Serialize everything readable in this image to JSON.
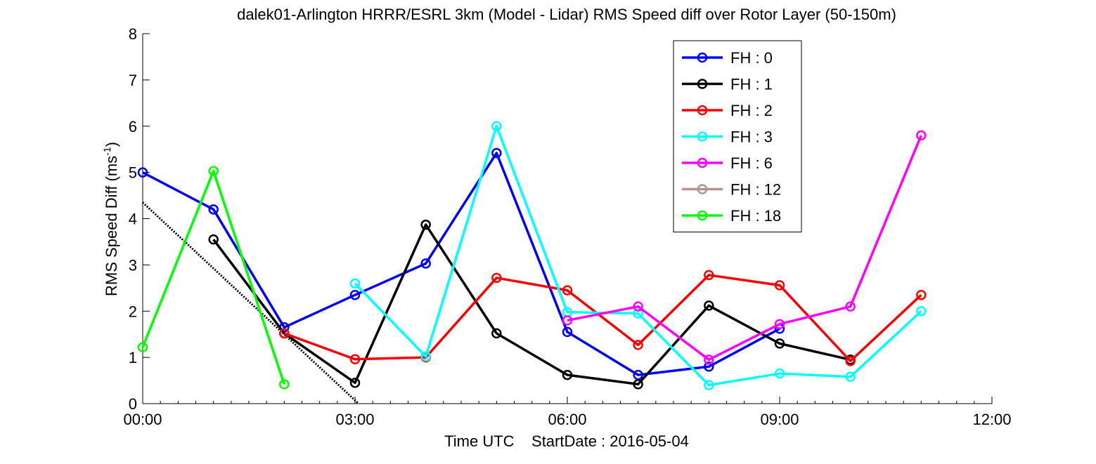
{
  "chart_data": {
    "type": "line",
    "title": "dalek01-Arlington HRRR/ESRL 3km (Model - Lidar) RMS Speed diff over Rotor Layer (50-150m)",
    "xlabel": "Time UTC    StartDate : 2016-05-04",
    "ylabel_main": "RMS Speed Diff (ms",
    "ylabel_sup": "-1",
    "ylabel_tail": ")",
    "xlim": [
      0,
      12
    ],
    "ylim": [
      0,
      8
    ],
    "x_ticks": [
      0,
      3,
      6,
      9,
      12
    ],
    "x_tick_labels": [
      "00:00",
      "03:00",
      "06:00",
      "09:00",
      "12:00"
    ],
    "y_ticks": [
      0,
      1,
      2,
      3,
      4,
      5,
      6,
      7,
      8
    ],
    "y_tick_labels": [
      "0",
      "1",
      "2",
      "3",
      "4",
      "5",
      "6",
      "7",
      "8"
    ],
    "grid": false,
    "legend_position": "top-right",
    "series": [
      {
        "name": "FH : 0",
        "color": "#0000ff",
        "points": [
          [
            0,
            5.0
          ],
          [
            1,
            4.2
          ],
          [
            2,
            1.65
          ],
          [
            3,
            2.35
          ],
          [
            4,
            3.03
          ],
          [
            5,
            5.42
          ],
          [
            6,
            1.55
          ],
          [
            7,
            0.62
          ],
          [
            8,
            0.8
          ],
          [
            9,
            1.62
          ]
        ]
      },
      {
        "name": "FH : 1",
        "color": "#000000",
        "points": [
          [
            1,
            3.55
          ],
          [
            2,
            1.52
          ],
          [
            3,
            0.45
          ],
          [
            4,
            3.87
          ],
          [
            5,
            1.52
          ],
          [
            6,
            0.62
          ],
          [
            7,
            0.42
          ],
          [
            8,
            2.12
          ],
          [
            9,
            1.3
          ],
          [
            10,
            0.95
          ]
        ]
      },
      {
        "name": "FH : 2",
        "color": "#ff0000",
        "points": [
          [
            2,
            1.52
          ],
          [
            3,
            0.96
          ],
          [
            4,
            1.0
          ],
          [
            5,
            2.72
          ],
          [
            6,
            2.45
          ],
          [
            7,
            1.27
          ],
          [
            8,
            2.78
          ],
          [
            9,
            2.56
          ],
          [
            10,
            0.92
          ],
          [
            11,
            2.35
          ]
        ]
      },
      {
        "name": "FH : 3",
        "color": "#00ffff",
        "points": [
          [
            3,
            2.6
          ],
          [
            4,
            1.02
          ],
          [
            5,
            6.0
          ],
          [
            6,
            1.98
          ],
          [
            7,
            1.95
          ],
          [
            8,
            0.4
          ],
          [
            9,
            0.65
          ],
          [
            10,
            0.58
          ],
          [
            11,
            2.0
          ]
        ]
      },
      {
        "name": "FH : 6",
        "color": "#ff00ff",
        "points": [
          [
            6,
            1.8
          ],
          [
            7,
            2.1
          ],
          [
            8,
            0.95
          ],
          [
            9,
            1.72
          ],
          [
            10,
            2.1
          ],
          [
            11,
            5.8
          ]
        ]
      },
      {
        "name": "FH : 12",
        "color": "#bc8f8f",
        "points": []
      },
      {
        "name": "FH : 18",
        "color": "#00ff00",
        "points": [
          [
            0,
            1.22
          ],
          [
            1,
            5.03
          ],
          [
            2,
            0.42
          ]
        ]
      }
    ],
    "trend_line": {
      "color": "#000000",
      "style": "dotted",
      "points": [
        [
          0,
          4.35
        ],
        [
          3.05,
          0.0
        ]
      ]
    }
  }
}
